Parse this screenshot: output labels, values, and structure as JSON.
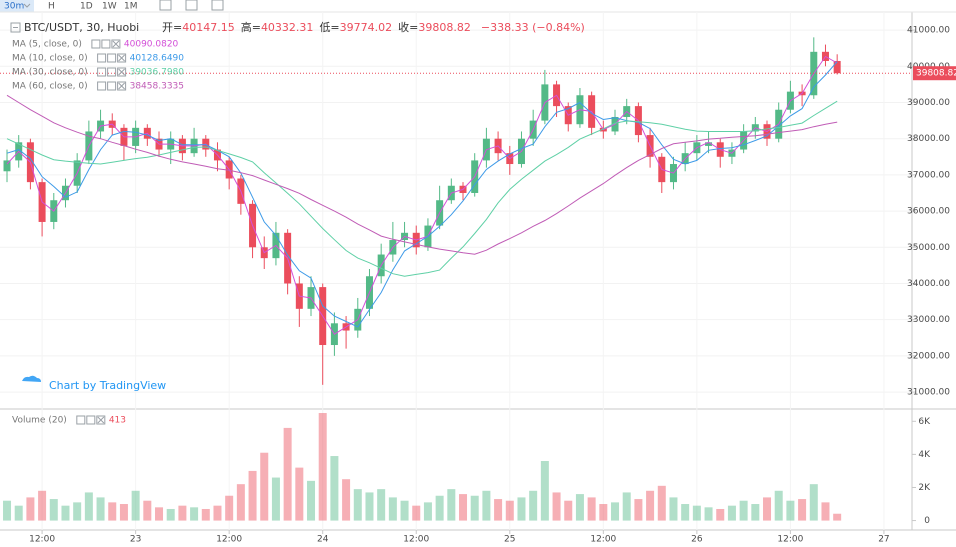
{
  "toolbar": [
    "30m",
    "H",
    "1D",
    "1W",
    "1M"
  ],
  "watermark": "Chart by TradingView",
  "chart_data": [
    {
      "type": "candlestick",
      "title": "BTC/USDT, 30, Huobi",
      "ohlc_names": [
        "开=",
        "高=",
        "低=",
        "收="
      ],
      "change_label": "−338.33 (−0.84%)",
      "last_price_label": "39808.82",
      "up_color": "#53b987",
      "down_color": "#eb4d5c",
      "open": [
        37100,
        37400,
        37900,
        36800,
        35700,
        36300,
        36700,
        37400,
        38200,
        38500,
        38300,
        37800,
        38300,
        38000,
        37700,
        38000,
        37600,
        38000,
        37700,
        37400,
        36900,
        36200,
        35000,
        34700,
        35400,
        34000,
        33300,
        33900,
        32300,
        32900,
        32700,
        33300,
        34200,
        34800,
        35200,
        35400,
        35000,
        35600,
        36300,
        36700,
        36500,
        37400,
        38000,
        37600,
        37300,
        38000,
        38500,
        39500,
        38900,
        38400,
        39200,
        38300,
        38200,
        38600,
        38900,
        38100,
        37500,
        36800,
        37300,
        37600,
        37800,
        37900,
        37500,
        37700,
        38200,
        38400,
        38000,
        38800,
        39300,
        39200,
        40400,
        40147.15
      ],
      "high": [
        37700,
        38100,
        38000,
        36900,
        36500,
        36900,
        37600,
        38500,
        38800,
        38700,
        38400,
        38500,
        38400,
        38200,
        38200,
        38100,
        38300,
        38100,
        37900,
        37500,
        37000,
        36300,
        35300,
        35700,
        35500,
        34200,
        34200,
        34000,
        33200,
        33100,
        33600,
        34400,
        35100,
        35700,
        35700,
        35600,
        35800,
        36700,
        36900,
        36800,
        37600,
        38300,
        38200,
        37800,
        38200,
        38800,
        39900,
        39600,
        39000,
        39400,
        39300,
        38500,
        38800,
        39100,
        39000,
        38300,
        37600,
        37500,
        37900,
        38100,
        38200,
        38000,
        37900,
        38400,
        38600,
        38500,
        39000,
        39600,
        39500,
        40800,
        40600,
        40332.31
      ],
      "low": [
        36800,
        37200,
        36600,
        35300,
        35500,
        36100,
        36500,
        37300,
        38000,
        38100,
        37400,
        37600,
        37800,
        37500,
        37300,
        37400,
        37500,
        37500,
        37100,
        36600,
        35900,
        34700,
        34400,
        34500,
        33700,
        32800,
        33100,
        31200,
        32000,
        32200,
        32500,
        33100,
        34000,
        34600,
        35000,
        34800,
        34900,
        35500,
        36200,
        36300,
        36400,
        37200,
        37400,
        37000,
        37200,
        37800,
        38400,
        38600,
        38200,
        38300,
        38100,
        38000,
        38100,
        38400,
        37900,
        37200,
        36500,
        36600,
        37100,
        37400,
        37600,
        37200,
        37300,
        37600,
        38000,
        37800,
        37900,
        38700,
        38900,
        39100,
        40000,
        39774.02
      ],
      "close": [
        37400,
        37900,
        36800,
        35700,
        36300,
        36700,
        37400,
        38200,
        38500,
        38300,
        37800,
        38300,
        38000,
        37700,
        38000,
        37600,
        38000,
        37700,
        37400,
        36900,
        36200,
        35000,
        34700,
        35400,
        34000,
        33300,
        33900,
        32300,
        32900,
        32700,
        33300,
        34200,
        34800,
        35200,
        35400,
        35000,
        35600,
        36300,
        36700,
        36500,
        37400,
        38000,
        37600,
        37300,
        38000,
        38500,
        39500,
        38900,
        38400,
        39200,
        38300,
        38200,
        38600,
        38900,
        38100,
        37500,
        36800,
        37300,
        37600,
        37900,
        37900,
        37500,
        37700,
        38200,
        38400,
        38000,
        38800,
        39300,
        39200,
        40400,
        40147.15,
        39808.82
      ],
      "series": [
        {
          "name": "MA (5, close, 0)",
          "color": "#d34fd8",
          "last_label": "40090.0820",
          "values": [
            37300,
            37650,
            37350,
            36250,
            36000,
            36500,
            37050,
            37800,
            38350,
            38400,
            38050,
            38050,
            38150,
            37850,
            37850,
            37800,
            37800,
            37850,
            37550,
            37150,
            36550,
            35600,
            34850,
            35050,
            34700,
            33650,
            33600,
            33100,
            32600,
            32800,
            33000,
            33750,
            34500,
            35000,
            35300,
            35200,
            35300,
            35950,
            36500,
            36600,
            36950,
            37700,
            37800,
            37450,
            37650,
            38250,
            39000,
            39200,
            38650,
            38800,
            38750,
            38250,
            38400,
            38750,
            38500,
            37800,
            37150,
            37050,
            37450,
            37750,
            37900,
            37700,
            37600,
            37950,
            38300,
            38200,
            38400,
            39050,
            39250,
            39800,
            40270,
            40090.082
          ]
        },
        {
          "name": "MA (10, close, 0)",
          "color": "#3d9ae8",
          "last_label": "40128.6490",
          "values": [
            37600,
            37700,
            37450,
            36950,
            36680,
            36380,
            36530,
            37150,
            37700,
            38100,
            38200,
            38180,
            38100,
            37950,
            38000,
            37830,
            37830,
            37830,
            37680,
            37500,
            37050,
            36380,
            35700,
            35330,
            34780,
            34350,
            34150,
            33380,
            33100,
            32950,
            32800,
            33280,
            33750,
            34380,
            34900,
            35100,
            35300,
            35580,
            35900,
            36280,
            36730,
            37150,
            37380,
            37580,
            37730,
            37850,
            38330,
            38730,
            38830,
            39000,
            38700,
            38530,
            38580,
            38500,
            38450,
            38280,
            37830,
            37430,
            37300,
            37400,
            37680,
            37730,
            37750,
            37830,
            37950,
            38080,
            38350,
            38630,
            38830,
            39430,
            39760,
            40128.649
          ]
        },
        {
          "name": "MA (30, close, 0)",
          "color": "#5fd0a6",
          "last_label": "39036.7980",
          "values": [
            38000,
            37850,
            37700,
            37550,
            37420,
            37380,
            37350,
            37320,
            37300,
            37350,
            37400,
            37450,
            37490,
            37550,
            37620,
            37690,
            37760,
            37770,
            37680,
            37580,
            37480,
            37360,
            37060,
            36780,
            36490,
            36200,
            35860,
            35520,
            35210,
            34910,
            34700,
            34570,
            34420,
            34270,
            34200,
            34250,
            34300,
            34370,
            34700,
            35010,
            35380,
            35770,
            36230,
            36600,
            36880,
            37130,
            37380,
            37560,
            37760,
            37990,
            38130,
            38270,
            38430,
            38490,
            38470,
            38440,
            38400,
            38330,
            38260,
            38210,
            38200,
            38200,
            38200,
            38200,
            38220,
            38270,
            38310,
            38370,
            38430,
            38640,
            38840,
            39036.798
          ]
        },
        {
          "name": "MA (60, close, 0)",
          "color": "#c05cb6",
          "last_label": "38458.3335",
          "values": [
            39200,
            39000,
            38800,
            38620,
            38440,
            38300,
            38180,
            38070,
            38000,
            37900,
            37810,
            37710,
            37620,
            37520,
            37430,
            37360,
            37300,
            37240,
            37170,
            37130,
            37060,
            36980,
            36860,
            36740,
            36620,
            36490,
            36320,
            36160,
            36000,
            35830,
            35640,
            35480,
            35310,
            35220,
            35150,
            35080,
            35010,
            34950,
            34900,
            34850,
            34810,
            34920,
            35090,
            35240,
            35400,
            35580,
            35740,
            35930,
            36140,
            36360,
            36560,
            36760,
            36990,
            37200,
            37400,
            37560,
            37730,
            37860,
            37900,
            37940,
            37990,
            38010,
            38040,
            38060,
            38080,
            38120,
            38170,
            38210,
            38250,
            38330,
            38400,
            38458.3335
          ]
        }
      ],
      "xlim": [
        -0.6,
        77.4
      ],
      "xticks": [
        {
          "value": 3,
          "label": "12:00"
        },
        {
          "value": 11,
          "label": "23"
        },
        {
          "value": 19,
          "label": "12:00"
        },
        {
          "value": 27,
          "label": "24"
        },
        {
          "value": 35,
          "label": "12:00"
        },
        {
          "value": 43,
          "label": "25"
        },
        {
          "value": 51,
          "label": "12:00"
        },
        {
          "value": 59,
          "label": "26"
        },
        {
          "value": 67,
          "label": "12:00"
        },
        {
          "value": 75,
          "label": "27"
        }
      ],
      "ylim": [
        30560,
        41500
      ],
      "yticks": [
        {
          "value": 31000,
          "label": "31000.00"
        },
        {
          "value": 32000,
          "label": "32000.00"
        },
        {
          "value": 33000,
          "label": "33000.00"
        },
        {
          "value": 34000,
          "label": "34000.00"
        },
        {
          "value": 35000,
          "label": "35000.00"
        },
        {
          "value": 36000,
          "label": "36000.00"
        },
        {
          "value": 37000,
          "label": "37000.00"
        },
        {
          "value": 38000,
          "label": "38000.00"
        },
        {
          "value": 39000,
          "label": "39000.00"
        },
        {
          "value": 40000,
          "label": "40000.00"
        },
        {
          "value": 41000,
          "label": "41000.00"
        }
      ],
      "grid": true
    },
    {
      "type": "bar",
      "name": "Volume (20)",
      "last_label": "413",
      "values": [
        1200,
        900,
        1400,
        1800,
        1300,
        900,
        1100,
        1700,
        1400,
        1100,
        1000,
        1800,
        1200,
        800,
        700,
        900,
        800,
        700,
        900,
        1500,
        2200,
        3000,
        4100,
        2600,
        5600,
        3200,
        2400,
        6500,
        3900,
        2500,
        1900,
        1700,
        1900,
        1400,
        1200,
        900,
        1100,
        1500,
        1900,
        1600,
        1500,
        1800,
        1300,
        1200,
        1400,
        1800,
        3600,
        1700,
        1200,
        1600,
        1400,
        1000,
        1100,
        1700,
        1300,
        1800,
        2100,
        1400,
        1000,
        900,
        800,
        700,
        900,
        1200,
        1000,
        1400,
        1800,
        1200,
        1300,
        2200,
        1100,
        413
      ],
      "ylim": [
        -570,
        6380
      ],
      "yticks": [
        0,
        {
          "value": 2000,
          "label": "2K"
        },
        {
          "value": 4000,
          "label": "4K"
        },
        {
          "value": 6000,
          "label": "6K"
        }
      ]
    }
  ]
}
